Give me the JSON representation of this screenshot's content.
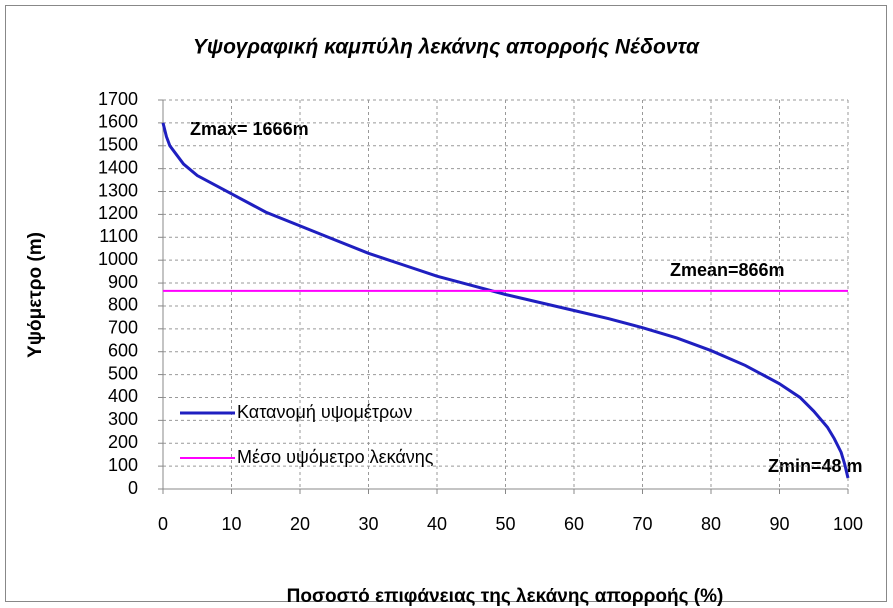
{
  "chart_data": {
    "type": "line",
    "title": "Υψογραφική καμπύλη λεκάνης απορροής Νέδοντα",
    "x_label": "Ποσοστό επιφάνειας της λεκάνης απορροής (%)",
    "y_label": "Υψόμετρο (m)",
    "xlim": [
      0,
      100
    ],
    "ylim": [
      0,
      1700
    ],
    "xticks": [
      0,
      10,
      20,
      30,
      40,
      50,
      60,
      70,
      80,
      90,
      100
    ],
    "yticks": [
      0,
      100,
      200,
      300,
      400,
      500,
      600,
      700,
      800,
      900,
      1000,
      1100,
      1200,
      1300,
      1400,
      1500,
      1600,
      1700
    ],
    "grid": true,
    "legend": "lower left",
    "series": [
      {
        "name": "Κατανομή υψομέτρων",
        "color": "#1f1fc0",
        "x": [
          0,
          0.5,
          1,
          2,
          3,
          5,
          10,
          15,
          20,
          25,
          30,
          35,
          40,
          45,
          50,
          55,
          60,
          65,
          70,
          75,
          80,
          85,
          90,
          93,
          95,
          97,
          98,
          99,
          99.5,
          100
        ],
        "values": [
          1600,
          1540,
          1500,
          1460,
          1420,
          1370,
          1290,
          1210,
          1150,
          1090,
          1030,
          980,
          930,
          890,
          850,
          815,
          780,
          745,
          705,
          660,
          605,
          540,
          460,
          400,
          340,
          270,
          220,
          160,
          110,
          48
        ]
      },
      {
        "name": "Μέσο υψόμετρο λεκάνης",
        "color": "#ff00ff",
        "x": [
          0,
          100
        ],
        "values": [
          866,
          866
        ]
      }
    ],
    "annotations": [
      "Zmax= 1666m",
      "Zmean=866m",
      "Zmin=48 m"
    ]
  }
}
